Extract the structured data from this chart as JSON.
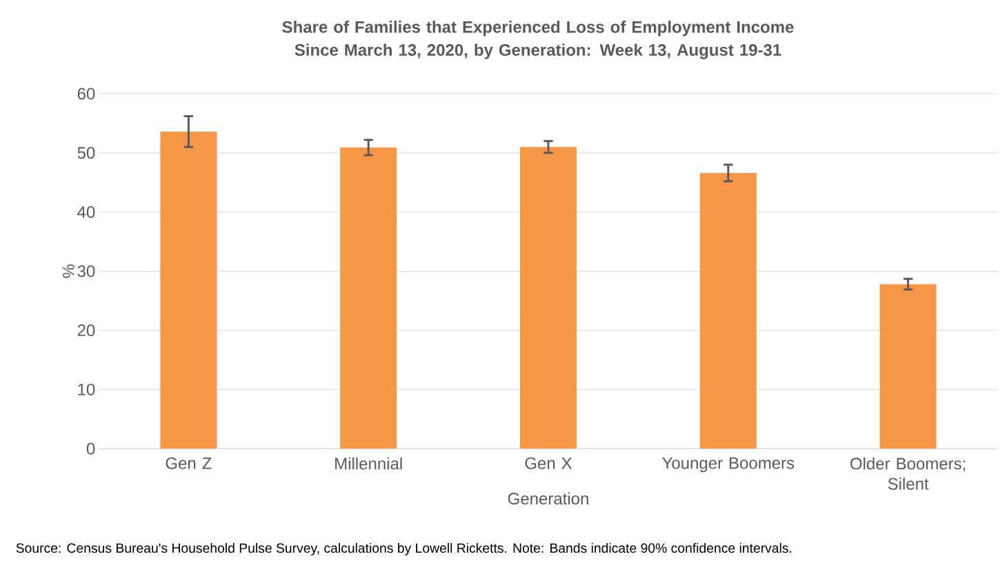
{
  "chart_data": {
    "type": "bar",
    "title": "Share of Families that Experienced Loss of Employment Income Since March 13, 2020, by Generation: Week 13, August 19-31",
    "xlabel": "Generation",
    "ylabel": "%",
    "categories": [
      "Gen Z",
      "Millennial",
      "Gen X",
      "Younger Boomers",
      "Older Boomers; Silent"
    ],
    "values": [
      53.6,
      50.9,
      51.0,
      46.6,
      27.8
    ],
    "errors": [
      2.6,
      1.3,
      1.0,
      1.4,
      0.9
    ],
    "color": "#f79646",
    "ylim": [
      0,
      60
    ],
    "yticks": [
      0,
      10,
      20,
      30,
      40,
      50,
      60
    ],
    "grid": "y",
    "annotations": [
      "Source: Census Bureau's Household Pulse Survey, calculations by Lowell Ricketts. Note: Bands indicate 90% confidence intervals."
    ]
  }
}
